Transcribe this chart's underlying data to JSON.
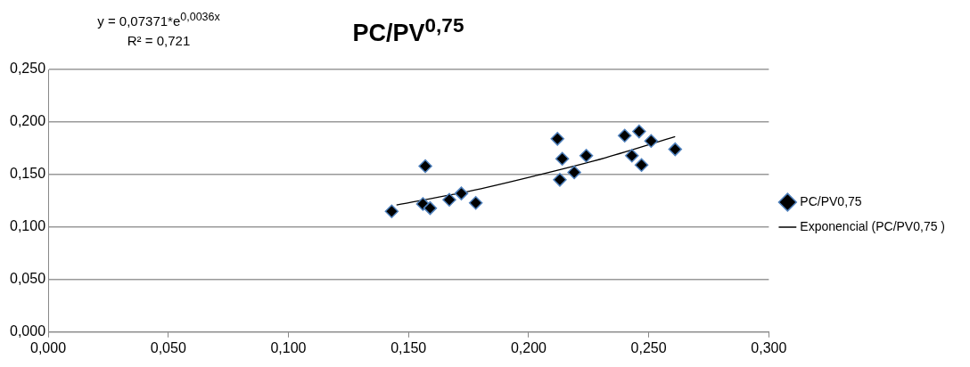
{
  "chart_data": {
    "type": "scatter",
    "title": "PC/PV$^{0,75}$",
    "annotations": [
      "y = 0,07371*e$^{0,0036x}$",
      "R² = 0,721"
    ],
    "xlim": [
      0,
      0.3
    ],
    "xticks": [
      {
        "value": 0,
        "label": "0,000"
      },
      {
        "value": 0.05,
        "label": "0,050"
      },
      {
        "value": 0.1,
        "label": "0,100"
      },
      {
        "value": 0.15,
        "label": "0,150"
      },
      {
        "value": 0.2,
        "label": "0,200"
      },
      {
        "value": 0.25,
        "label": "0,250"
      },
      {
        "value": 0.3,
        "label": "0,300"
      }
    ],
    "ylim": [
      0,
      0.25
    ],
    "yticks": [
      {
        "value": 0,
        "label": "0,000"
      },
      {
        "value": 0.05,
        "label": "0,050"
      },
      {
        "value": 0.1,
        "label": "0,100"
      },
      {
        "value": 0.15,
        "label": "0,150"
      },
      {
        "value": 0.2,
        "label": "0,200"
      },
      {
        "value": 0.25,
        "label": "0,250"
      }
    ],
    "grid": "y",
    "legend": "right",
    "series": [
      {
        "name": "PC/PV0,75",
        "type": "scatter",
        "marker": "diamond",
        "color": "#000000",
        "x": [
          0.143,
          0.156,
          0.159,
          0.157,
          0.167,
          0.172,
          0.178,
          0.212,
          0.214,
          0.213,
          0.219,
          0.224,
          0.24,
          0.246,
          0.251,
          0.243,
          0.247,
          0.261
        ],
        "values": [
          0.115,
          0.122,
          0.118,
          0.158,
          0.126,
          0.132,
          0.123,
          0.184,
          0.165,
          0.145,
          0.152,
          0.168,
          0.187,
          0.191,
          0.182,
          0.168,
          0.159,
          0.174
        ]
      },
      {
        "name": "Exponencial (PC/PV0,75 )",
        "type": "line",
        "marker": "none",
        "color": "#000000",
        "x": [
          0.145,
          0.175,
          0.203,
          0.232,
          0.261
        ],
        "values": [
          0.121,
          0.134,
          0.149,
          0.166,
          0.186
        ]
      }
    ]
  }
}
